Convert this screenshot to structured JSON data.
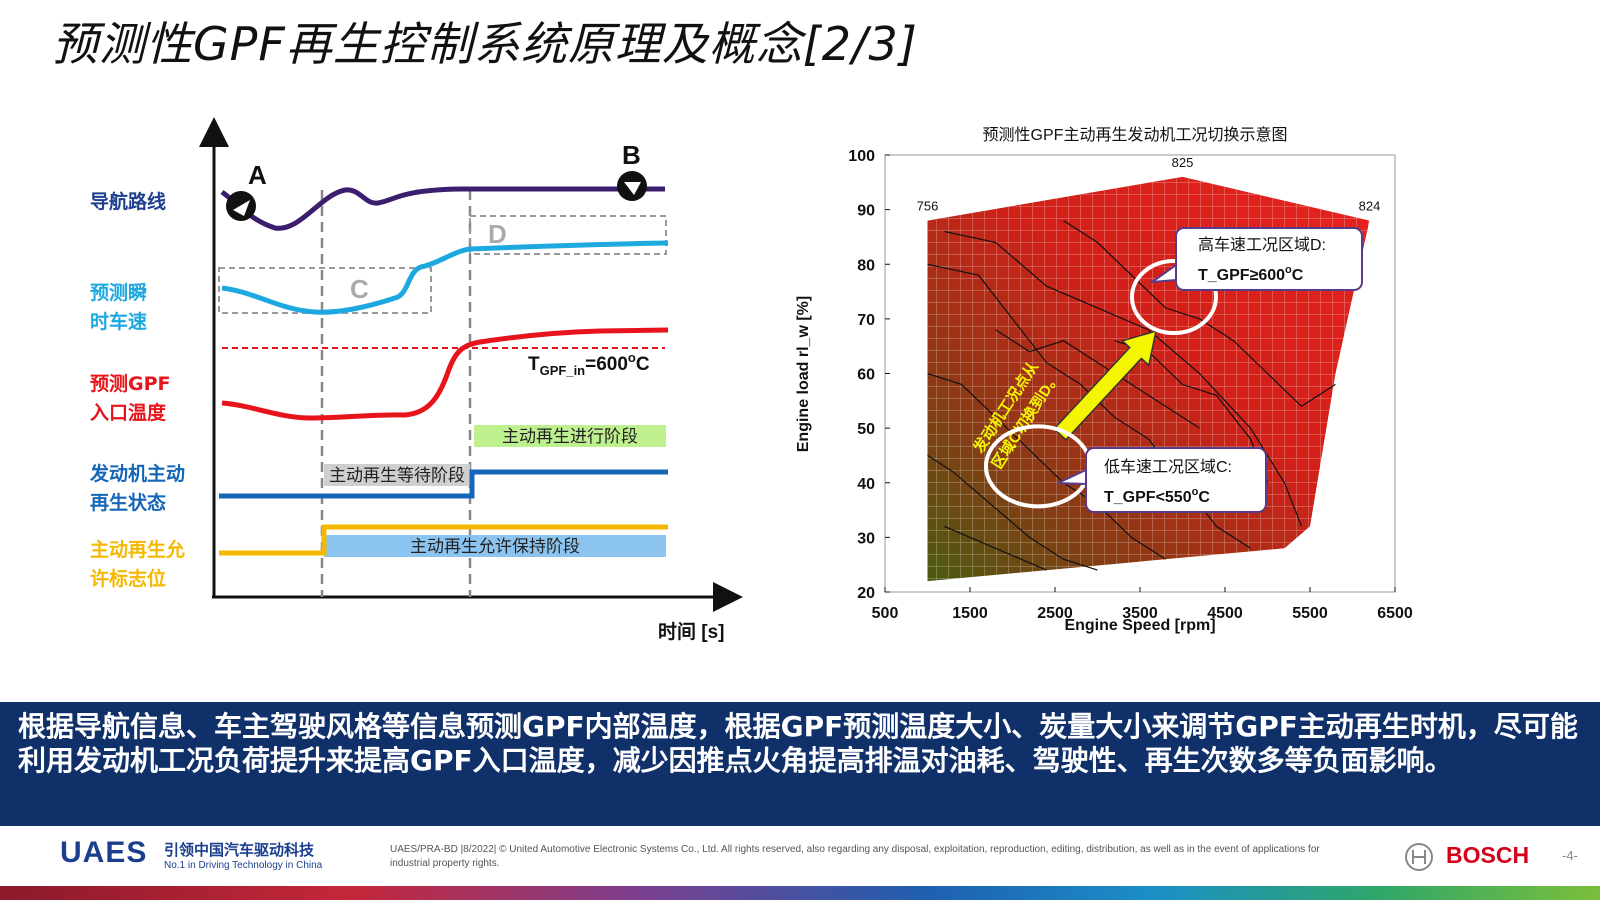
{
  "title": "预测性GPF再生控制系统原理及概念[2/3]",
  "timing_diagram": {
    "row_labels": {
      "nav_route": "导航路线",
      "speed_1": "预测瞬",
      "speed_2": "时车速",
      "temp_1": "预测GPF",
      "temp_2": "入口温度",
      "engine_1": "发动机主动",
      "engine_2": "再生状态",
      "permit_1": "主动再生允",
      "permit_2": "许标志位"
    },
    "point_a": "A",
    "point_b": "B",
    "region_c": "C",
    "region_d": "D",
    "threshold_prefix": "T",
    "threshold_sub": "GPF_in",
    "threshold_value": "=600",
    "threshold_sup": "o",
    "threshold_unit": "C",
    "phase_active": "主动再生进行阶段",
    "phase_waiting": "主动再生等待阶段",
    "phase_permit": "主动再生允许保持阶段",
    "x_axis_label": "时间 [s]",
    "colors": {
      "nav": "#3b1e6e",
      "speed": "#1ea8e0",
      "temp": "#e8141c",
      "engine": "#1466b8",
      "permit": "#f5b800"
    }
  },
  "chart_data": {
    "type": "heatmap",
    "title": "预测性GPF主动再生发动机工况切换示意图",
    "xlabel": "Engine Speed [rpm]",
    "ylabel": "Engine load rl_w [%]",
    "xlim": [
      500,
      6500
    ],
    "ylim": [
      20,
      100
    ],
    "x_ticks": [
      "500",
      "1500",
      "2500",
      "3500",
      "4500",
      "5500",
      "6500"
    ],
    "y_ticks": [
      "20",
      "30",
      "40",
      "50",
      "60",
      "70",
      "80",
      "90",
      "100"
    ],
    "boundary_labels": [
      {
        "label": "756",
        "x": 1000,
        "y": 88
      },
      {
        "label": "825",
        "x": 4000,
        "y": 96
      },
      {
        "label": "824",
        "x": 6200,
        "y": 88
      }
    ],
    "high_speed_region": {
      "title": "高车速工况区域D:",
      "condition_prefix": "T_GPF≥600",
      "condition_sup": "o",
      "condition_unit": "C",
      "center": [
        3900,
        74
      ]
    },
    "low_speed_region": {
      "title": "低车速工况区域C:",
      "condition_prefix": "T_GPF<550",
      "condition_sup": "o",
      "condition_unit": "C",
      "center": [
        2300,
        43
      ]
    },
    "arrow_text_1": "发动机工况点从",
    "arrow_text_2": "区域C切换到D。",
    "colors": {
      "map_red": "#e0221e",
      "map_dark": "#5a5a10",
      "arrow": "#f5f500"
    }
  },
  "banner_text": "根据导航信息、车主驾驶风格等信息预测GPF内部温度，根据GPF预测温度大小、炭量大小来调节GPF主动再生时机，尽可能利用发动机工况负荷提升来提高GPF入口温度，减少因推点火角提高排温对油耗、驾驶性、再生次数多等负面影响。",
  "footer": {
    "logo": "UAES",
    "tagline_cn": "引领中国汽车驱动科技",
    "tagline_en": "No.1 in Driving Technology in China",
    "copyright": "UAES/PRA-BD |8/2022| © United Automotive Electronic Systems Co., Ltd.  All rights reserved, also regarding any disposal, exploitation, reproduction, editing, distribution, as well as in the event of applications for industrial property rights.",
    "bosch": "BOSCH",
    "page": "-4-"
  }
}
